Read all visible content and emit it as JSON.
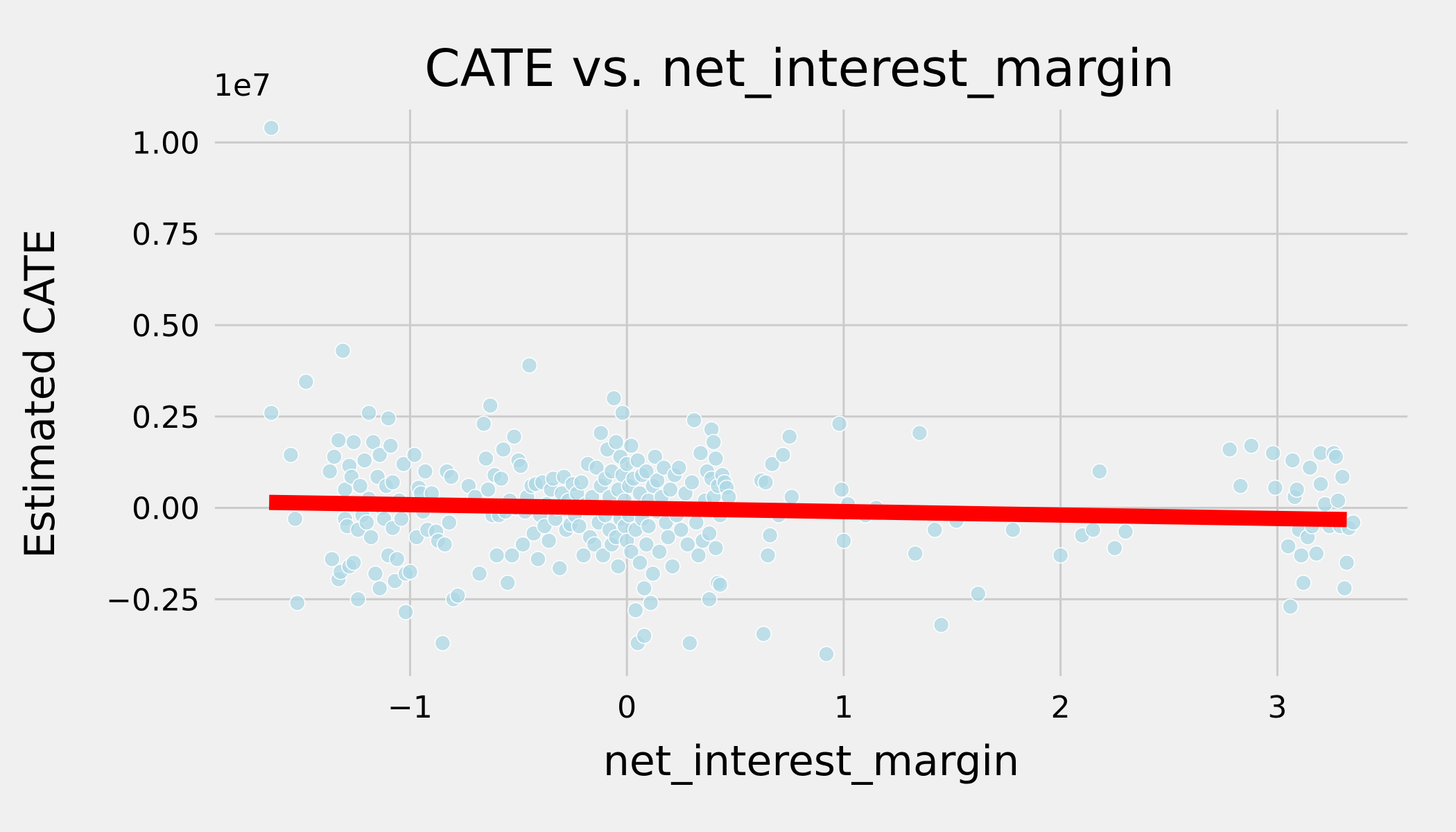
{
  "chart_data": {
    "type": "scatter",
    "title": "CATE vs. net_interest_margin",
    "xlabel": "net_interest_margin",
    "ylabel": "Estimated CATE",
    "y_offset_label": "1e7",
    "xlim": [
      -1.9,
      3.6
    ],
    "ylim": [
      -4.6,
      10.9
    ],
    "x_ticks": [
      -1,
      0,
      1,
      2,
      3
    ],
    "x_tick_labels": [
      "−1",
      "0",
      "1",
      "2",
      "3"
    ],
    "y_ticks": [
      -2.5,
      0,
      2.5,
      5,
      7.5,
      10
    ],
    "y_tick_labels": [
      "−0.25",
      "0.00",
      "0.25",
      "0.50",
      "0.75",
      "1.00"
    ],
    "grid": true,
    "colors": {
      "background": "#f0f0f0",
      "grid": "#cbcbcb",
      "points": "#add8e6",
      "trend": "#ff0000"
    },
    "trend_line": {
      "x": [
        -1.65,
        3.32
      ],
      "y": [
        0.15,
        -0.32
      ]
    },
    "series": [
      {
        "points": [
          [
            -1.64,
            10.4
          ],
          [
            -1.64,
            2.6
          ],
          [
            -1.55,
            1.45
          ],
          [
            -1.53,
            -0.3
          ],
          [
            -1.52,
            -2.6
          ],
          [
            -1.48,
            3.45
          ],
          [
            -1.37,
            1.0
          ],
          [
            -1.36,
            -1.4
          ],
          [
            -1.35,
            1.4
          ],
          [
            -1.33,
            -1.95
          ],
          [
            -1.33,
            1.85
          ],
          [
            -1.32,
            -1.75
          ],
          [
            -1.31,
            4.3
          ],
          [
            -1.3,
            0.5
          ],
          [
            -1.3,
            -0.3
          ],
          [
            -1.29,
            -0.5
          ],
          [
            -1.28,
            1.15
          ],
          [
            -1.28,
            -1.6
          ],
          [
            -1.27,
            0.85
          ],
          [
            -1.26,
            1.8
          ],
          [
            -1.26,
            -1.5
          ],
          [
            -1.25,
            0.1
          ],
          [
            -1.24,
            -2.5
          ],
          [
            -1.24,
            -0.6
          ],
          [
            -1.23,
            0.6
          ],
          [
            -1.22,
            -0.2
          ],
          [
            -1.21,
            1.3
          ],
          [
            -1.2,
            -0.4
          ],
          [
            -1.19,
            2.6
          ],
          [
            -1.19,
            0.25
          ],
          [
            -1.18,
            -0.8
          ],
          [
            -1.17,
            1.8
          ],
          [
            -1.16,
            -1.8
          ],
          [
            -1.15,
            0.85
          ],
          [
            -1.14,
            -2.2
          ],
          [
            -1.14,
            1.45
          ],
          [
            -1.13,
            0.0
          ],
          [
            -1.12,
            -0.3
          ],
          [
            -1.11,
            0.6
          ],
          [
            -1.1,
            -1.3
          ],
          [
            -1.1,
            2.45
          ],
          [
            -1.09,
            1.7
          ],
          [
            -1.08,
            -0.55
          ],
          [
            -1.08,
            0.7
          ],
          [
            -1.07,
            -2.0
          ],
          [
            -1.06,
            -1.4
          ],
          [
            -1.05,
            0.2
          ],
          [
            -1.04,
            -0.3
          ],
          [
            -1.03,
            1.2
          ],
          [
            -1.02,
            -1.8
          ],
          [
            -1.02,
            -2.85
          ],
          [
            -1.0,
            -1.75
          ],
          [
            -0.98,
            1.45
          ],
          [
            -0.97,
            -0.8
          ],
          [
            -0.96,
            0.55
          ],
          [
            -0.95,
            0.4
          ],
          [
            -0.94,
            -0.1
          ],
          [
            -0.93,
            1.0
          ],
          [
            -0.92,
            -0.6
          ],
          [
            -0.9,
            0.4
          ],
          [
            -0.88,
            -0.65
          ],
          [
            -0.87,
            -0.9
          ],
          [
            -0.85,
            -3.7
          ],
          [
            -0.84,
            -1.0
          ],
          [
            -0.83,
            1.0
          ],
          [
            -0.82,
            -0.4
          ],
          [
            -0.81,
            0.85
          ],
          [
            -0.8,
            -2.5
          ],
          [
            -0.78,
            -2.4
          ],
          [
            -0.73,
            0.6
          ],
          [
            -0.7,
            0.3
          ],
          [
            -0.68,
            -1.8
          ],
          [
            -0.66,
            2.3
          ],
          [
            -0.65,
            1.35
          ],
          [
            -0.64,
            0.5
          ],
          [
            -0.63,
            2.8
          ],
          [
            -0.62,
            -0.2
          ],
          [
            -0.61,
            0.9
          ],
          [
            -0.6,
            -1.3
          ],
          [
            -0.59,
            -0.2
          ],
          [
            -0.58,
            0.8
          ],
          [
            -0.57,
            1.6
          ],
          [
            -0.56,
            -0.1
          ],
          [
            -0.55,
            -2.05
          ],
          [
            -0.54,
            0.2
          ],
          [
            -0.53,
            -1.3
          ],
          [
            -0.52,
            1.95
          ],
          [
            -0.51,
            0.0
          ],
          [
            -0.5,
            1.3
          ],
          [
            -0.49,
            1.15
          ],
          [
            -0.48,
            -1.0
          ],
          [
            -0.47,
            -0.1
          ],
          [
            -0.46,
            0.3
          ],
          [
            -0.45,
            3.9
          ],
          [
            -0.44,
            0.6
          ],
          [
            -0.43,
            -0.7
          ],
          [
            -0.42,
            0.65
          ],
          [
            -0.41,
            -1.4
          ],
          [
            -0.4,
            -0.2
          ],
          [
            -0.39,
            0.7
          ],
          [
            -0.38,
            -0.5
          ],
          [
            -0.37,
            0.1
          ],
          [
            -0.36,
            -0.9
          ],
          [
            -0.35,
            0.5
          ],
          [
            -0.34,
            0.8
          ],
          [
            -0.33,
            -0.3
          ],
          [
            -0.32,
            0.0
          ],
          [
            -0.31,
            -1.65
          ],
          [
            -0.3,
            0.4
          ],
          [
            -0.29,
            0.85
          ],
          [
            -0.28,
            -0.6
          ],
          [
            -0.27,
            0.2
          ],
          [
            -0.26,
            -0.45
          ],
          [
            -0.25,
            0.65
          ],
          [
            -0.24,
            -0.2
          ],
          [
            -0.23,
            0.4
          ],
          [
            -0.22,
            -0.5
          ],
          [
            -0.21,
            0.7
          ],
          [
            -0.2,
            -1.3
          ],
          [
            -0.19,
            0.1
          ],
          [
            -0.18,
            1.2
          ],
          [
            -0.17,
            -0.8
          ],
          [
            -0.16,
            0.3
          ],
          [
            -0.15,
            -1.0
          ],
          [
            -0.14,
            1.1
          ],
          [
            -0.13,
            -0.4
          ],
          [
            -0.12,
            2.05
          ],
          [
            -0.12,
            0.6
          ],
          [
            -0.11,
            -1.3
          ],
          [
            -0.1,
            0.8
          ],
          [
            -0.1,
            -0.2
          ],
          [
            -0.09,
            1.6
          ],
          [
            -0.08,
            -0.6
          ],
          [
            -0.08,
            0.3
          ],
          [
            -0.07,
            1.0
          ],
          [
            -0.07,
            -1.0
          ],
          [
            -0.06,
            3.0
          ],
          [
            -0.06,
            0.0
          ],
          [
            -0.05,
            1.8
          ],
          [
            -0.05,
            -0.8
          ],
          [
            -0.04,
            0.5
          ],
          [
            -0.04,
            -1.6
          ],
          [
            -0.03,
            1.4
          ],
          [
            -0.03,
            -0.3
          ],
          [
            -0.02,
            2.6
          ],
          [
            -0.02,
            0.9
          ],
          [
            -0.01,
            -0.5
          ],
          [
            -0.01,
            0.2
          ],
          [
            0.0,
            1.2
          ],
          [
            0.0,
            -0.9
          ],
          [
            0.01,
            0.6
          ],
          [
            0.01,
            -0.2
          ],
          [
            0.02,
            1.7
          ],
          [
            0.02,
            -1.2
          ],
          [
            0.03,
            0.0
          ],
          [
            0.03,
            0.8
          ],
          [
            0.04,
            -2.8
          ],
          [
            0.04,
            -0.6
          ],
          [
            0.05,
            1.3
          ],
          [
            0.05,
            -3.7
          ],
          [
            0.06,
            0.4
          ],
          [
            0.06,
            -1.5
          ],
          [
            0.07,
            0.9
          ],
          [
            0.07,
            -0.3
          ],
          [
            0.08,
            -3.5
          ],
          [
            0.08,
            -2.2
          ],
          [
            0.09,
            1.0
          ],
          [
            0.09,
            -1.0
          ],
          [
            0.1,
            0.2
          ],
          [
            0.1,
            -0.5
          ],
          [
            0.11,
            -2.6
          ],
          [
            0.12,
            0.6
          ],
          [
            0.12,
            -1.8
          ],
          [
            0.13,
            1.4
          ],
          [
            0.14,
            -0.1
          ],
          [
            0.14,
            0.75
          ],
          [
            0.15,
            -1.2
          ],
          [
            0.16,
            0.3
          ],
          [
            0.17,
            1.1
          ],
          [
            0.18,
            -0.4
          ],
          [
            0.19,
            -0.8
          ],
          [
            0.2,
            0.5
          ],
          [
            0.21,
            -1.6
          ],
          [
            0.22,
            0.9
          ],
          [
            0.23,
            -0.2
          ],
          [
            0.24,
            1.1
          ],
          [
            0.25,
            -0.6
          ],
          [
            0.26,
            0.0
          ],
          [
            0.27,
            0.4
          ],
          [
            0.28,
            -1.0
          ],
          [
            0.29,
            -3.7
          ],
          [
            0.3,
            0.7
          ],
          [
            0.31,
            2.4
          ],
          [
            0.32,
            -0.4
          ],
          [
            0.33,
            -1.3
          ],
          [
            0.34,
            1.5
          ],
          [
            0.35,
            -0.9
          ],
          [
            0.36,
            0.2
          ],
          [
            0.37,
            1.0
          ],
          [
            0.38,
            -2.5
          ],
          [
            0.38,
            -0.7
          ],
          [
            0.39,
            0.8
          ],
          [
            0.39,
            2.15
          ],
          [
            0.4,
            1.8
          ],
          [
            0.4,
            0.3
          ],
          [
            0.41,
            -1.1
          ],
          [
            0.41,
            1.35
          ],
          [
            0.42,
            -2.05
          ],
          [
            0.42,
            0.6
          ],
          [
            0.43,
            -2.1
          ],
          [
            0.43,
            -0.2
          ],
          [
            0.44,
            0.9
          ],
          [
            0.45,
            0.7
          ],
          [
            0.46,
            0.55
          ],
          [
            0.47,
            0.3
          ],
          [
            0.62,
            0.75
          ],
          [
            0.63,
            -3.45
          ],
          [
            0.64,
            0.7
          ],
          [
            0.65,
            -1.3
          ],
          [
            0.66,
            -0.75
          ],
          [
            0.67,
            1.2
          ],
          [
            0.7,
            -0.2
          ],
          [
            0.72,
            1.45
          ],
          [
            0.75,
            1.95
          ],
          [
            0.76,
            0.3
          ],
          [
            0.92,
            -4.0
          ],
          [
            0.98,
            2.3
          ],
          [
            0.99,
            0.5
          ],
          [
            1.0,
            -0.9
          ],
          [
            1.02,
            0.1
          ],
          [
            1.1,
            -0.2
          ],
          [
            1.15,
            0.0
          ],
          [
            1.33,
            -1.25
          ],
          [
            1.35,
            2.05
          ],
          [
            1.42,
            -0.6
          ],
          [
            1.45,
            -3.2
          ],
          [
            1.52,
            -0.35
          ],
          [
            1.62,
            -2.35
          ],
          [
            1.78,
            -0.6
          ],
          [
            2.0,
            -1.3
          ],
          [
            2.1,
            -0.75
          ],
          [
            2.15,
            -0.6
          ],
          [
            2.18,
            1.0
          ],
          [
            2.25,
            -1.1
          ],
          [
            2.3,
            -0.65
          ],
          [
            2.78,
            1.6
          ],
          [
            2.83,
            0.6
          ],
          [
            2.88,
            1.7
          ],
          [
            2.98,
            1.5
          ],
          [
            2.99,
            0.55
          ],
          [
            3.05,
            -1.05
          ],
          [
            3.06,
            -2.7
          ],
          [
            3.07,
            1.3
          ],
          [
            3.08,
            0.3
          ],
          [
            3.09,
            0.5
          ],
          [
            3.1,
            -0.6
          ],
          [
            3.11,
            -1.3
          ],
          [
            3.12,
            -2.05
          ],
          [
            3.14,
            -0.8
          ],
          [
            3.15,
            1.1
          ],
          [
            3.16,
            -0.5
          ],
          [
            3.18,
            -1.25
          ],
          [
            3.2,
            0.65
          ],
          [
            3.2,
            1.5
          ],
          [
            3.22,
            0.1
          ],
          [
            3.24,
            -0.5
          ],
          [
            3.26,
            1.5
          ],
          [
            3.27,
            1.4
          ],
          [
            3.28,
            0.2
          ],
          [
            3.29,
            -0.5
          ],
          [
            3.3,
            0.85
          ],
          [
            3.31,
            -2.2
          ],
          [
            3.32,
            -1.5
          ],
          [
            3.33,
            -0.55
          ],
          [
            3.35,
            -0.4
          ]
        ]
      }
    ]
  }
}
